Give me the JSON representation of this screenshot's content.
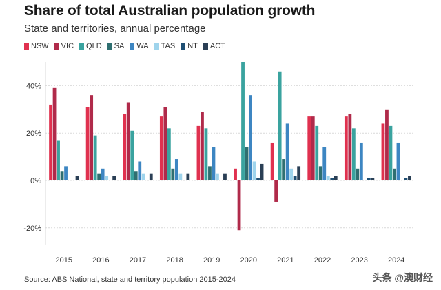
{
  "chart_data": {
    "type": "bar",
    "title": "Share of total Australian population growth",
    "subtitle": "State and territories, annual percentage",
    "source": "Source: ABS National, state and territory population 2015-2024",
    "categories": [
      "2015",
      "2016",
      "2017",
      "2018",
      "2019",
      "2020",
      "2021",
      "2022",
      "2023",
      "2024"
    ],
    "ylim": [
      -27,
      50
    ],
    "yticks": [
      -20,
      0,
      20,
      40
    ],
    "ytick_labels": [
      "-20%",
      "0%",
      "20%",
      "40%"
    ],
    "grid": true,
    "legend_position": "top-left",
    "series": [
      {
        "name": "NSW",
        "color": "#e0314f",
        "values": [
          32,
          31,
          28,
          27,
          23,
          5,
          16,
          27,
          27,
          24
        ]
      },
      {
        "name": "VIC",
        "color": "#b02a4a",
        "values": [
          39,
          36,
          33,
          31,
          29,
          -21,
          -9,
          27,
          28,
          30
        ]
      },
      {
        "name": "QLD",
        "color": "#3aa39f",
        "values": [
          17,
          19,
          21,
          22,
          22,
          50,
          46,
          23,
          22,
          23
        ]
      },
      {
        "name": "SA",
        "color": "#2f6f71",
        "values": [
          4,
          3,
          4,
          5,
          6,
          14,
          9,
          6,
          5,
          5
        ]
      },
      {
        "name": "WA",
        "color": "#3d86c2",
        "values": [
          6,
          5,
          8,
          9,
          14,
          36,
          24,
          14,
          16,
          16
        ]
      },
      {
        "name": "TAS",
        "color": "#9fd4ec",
        "values": [
          0,
          2,
          3,
          3,
          3,
          8,
          5,
          2,
          0,
          0
        ]
      },
      {
        "name": "NT",
        "color": "#1f4f73",
        "values": [
          0,
          0,
          0,
          0,
          0,
          1,
          2,
          1,
          1,
          1
        ]
      },
      {
        "name": "ACT",
        "color": "#2a3f55",
        "values": [
          2,
          2,
          3,
          3,
          3,
          7,
          6,
          2,
          1,
          2
        ]
      }
    ]
  },
  "watermark": {
    "text": "头条 @澳财经",
    "icon": "at-circle-icon"
  }
}
